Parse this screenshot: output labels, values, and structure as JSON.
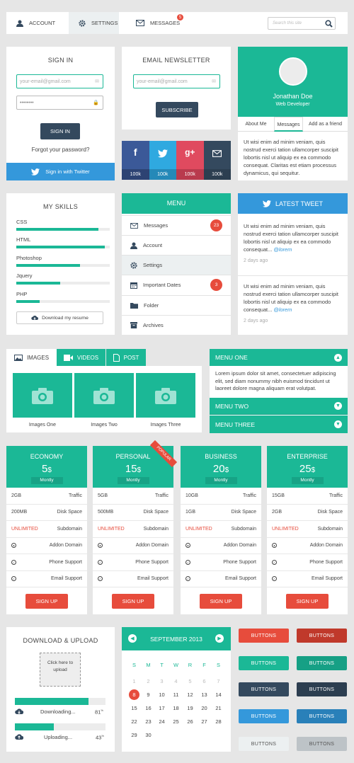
{
  "tabs": [
    {
      "label": "ACCOUNT",
      "icon": "user-icon"
    },
    {
      "label": "SETTINGS",
      "icon": "gear-icon"
    },
    {
      "label": "MESSAGES",
      "icon": "envelope-icon",
      "badge": "5"
    }
  ],
  "search": {
    "placeholder": "Search this site"
  },
  "signin": {
    "title": "SIGN IN",
    "email_placeholder": "your-email@gmail.com",
    "password": "••••••••",
    "button": "SIGN IN",
    "forgot": "Forgot your password?",
    "twitter": "Sign in with Twitter"
  },
  "newsletter": {
    "title": "EMAIL NEWSLETTER",
    "email_placeholder": "your-email@gmail.com",
    "button": "SUBSCRIBE"
  },
  "social": [
    {
      "icon": "f",
      "count": "100k",
      "color": "#3b5998"
    },
    {
      "icon": "bird",
      "count": "100k",
      "color": "#2fa9e0"
    },
    {
      "icon": "g+",
      "count": "100k",
      "color": "#e04a5f"
    },
    {
      "icon": "mail",
      "count": "100k",
      "color": "#34495e"
    }
  ],
  "profile": {
    "name": "Jonathan Doe",
    "role": "Web Developer",
    "tabs": [
      "About Me",
      "Messages",
      "Add as a friend"
    ],
    "text": "Ut wisi enim ad minim veniam, quis nostrud exerci tation ullamcorper suscipit lobortis nisl ut aliquip ex ea commodo consequat. Claritas est etiam processus dynamicus, qui sequitur."
  },
  "skills": {
    "title": "MY SKILLS",
    "items": [
      {
        "label": "CSS",
        "value": 0.88
      },
      {
        "label": "HTML",
        "value": 0.95
      },
      {
        "label": "Photoshop",
        "value": 0.68
      },
      {
        "label": "Jquery",
        "value": 0.47
      },
      {
        "label": "PHP",
        "value": 0.25
      }
    ],
    "download": "Download my resume"
  },
  "menu": {
    "title": "MENU",
    "items": [
      {
        "label": "Messages",
        "icon": "envelope-icon",
        "badge": "23"
      },
      {
        "label": "Account",
        "icon": "user-icon"
      },
      {
        "label": "Settings",
        "icon": "gear-icon"
      },
      {
        "label": "Important Dates",
        "icon": "calendar-icon",
        "badge": "3"
      },
      {
        "label": "Folder",
        "icon": "folder-icon"
      },
      {
        "label": "Archives",
        "icon": "archive-icon"
      }
    ]
  },
  "tweet": {
    "title": "LATEST TWEET",
    "items": [
      {
        "text": "Ut wisi enim ad minim veniam, quis nostrud exerci tation ullamcorper suscipit lobortis nisl ut aliquip ex ea commodo consequat...",
        "handle": "@lorem",
        "time": "2 days ago"
      },
      {
        "text": "Ut wisi enim ad minim veniam, quis nostrud exerci tation ullamcorper suscipit lobortis nisl ut aliquip ex ea commodo consequat...",
        "handle": "@lorem",
        "time": "2 days ago"
      }
    ]
  },
  "media": {
    "tabs": [
      "IMAGES",
      "VIDEOS",
      "POST"
    ],
    "images": [
      "Images One",
      "Images Two",
      "Images Three"
    ]
  },
  "accordion": {
    "items": [
      "MENU ONE",
      "MENU TWO",
      "MENU THREE"
    ],
    "text": "Lorem ipsum dolor sit amet, consectetuer adipiscing elit, sed diam nonummy nibh euismod tincidunt ut laoreet dolore magna aliquam erat volutpat."
  },
  "pricing": [
    {
      "name": "ECONOMY",
      "price": "5",
      "currency": "$",
      "period": "Montly",
      "rows": [
        [
          "2GB",
          "Traffic"
        ],
        [
          "200MB",
          "Disk Space"
        ],
        [
          "UNLIMITED",
          "Subdomain"
        ]
      ],
      "features": [
        "Addon Domain",
        "Phone Support",
        "Email Support"
      ],
      "button": "SIGN UP"
    },
    {
      "name": "PERSONAL",
      "price": "15",
      "currency": "$",
      "period": "Montly",
      "ribbon": "POPULAR",
      "rows": [
        [
          "5GB",
          "Traffic"
        ],
        [
          "500MB",
          "Disk Space"
        ],
        [
          "UNLIMITED",
          "Subdomain"
        ]
      ],
      "features": [
        "Addon Domain",
        "Phone Support",
        "Email Support"
      ],
      "button": "SIGN UP"
    },
    {
      "name": "BUSINESS",
      "price": "20",
      "currency": "$",
      "period": "Montly",
      "rows": [
        [
          "10GB",
          "Traffic"
        ],
        [
          "1GB",
          "Disk Space"
        ],
        [
          "UNLIMITED",
          "Subdomain"
        ]
      ],
      "features": [
        "Addon Domain",
        "Phone Support",
        "Email Support"
      ],
      "button": "SIGN UP"
    },
    {
      "name": "ENTERPRISE",
      "price": "25",
      "currency": "$",
      "period": "Montly",
      "rows": [
        [
          "15GB",
          "Traffic"
        ],
        [
          "2GB",
          "Disk Space"
        ],
        [
          "UNLIMITED",
          "Subdomain"
        ]
      ],
      "features": [
        "Addon Domain",
        "Phone Support",
        "Email Support"
      ],
      "button": "SIGN UP"
    }
  ],
  "upload": {
    "title": "DOWNLOAD & UPLOAD",
    "drop": "Click here to upload",
    "items": [
      {
        "label": "Downloading...",
        "percent": "81",
        "value": 0.81
      },
      {
        "label": "Uploading...",
        "percent": "43",
        "value": 0.43
      }
    ]
  },
  "calendar": {
    "title": "SEPTEMBER 2013",
    "weekdays": [
      "S",
      "M",
      "T",
      "W",
      "R",
      "F",
      "S"
    ],
    "prev": [
      "1",
      "2",
      "3",
      "4",
      "5",
      "6",
      "7"
    ],
    "today": "8",
    "days": [
      "9",
      "10",
      "11",
      "12",
      "13",
      "14",
      "15",
      "16",
      "17",
      "18",
      "19",
      "20",
      "21",
      "22",
      "23",
      "24",
      "25",
      "26",
      "27",
      "28",
      "29",
      "30"
    ]
  },
  "buttons": {
    "label": "BUTTONS",
    "colors": [
      [
        "#e74c3c",
        "#c0392b"
      ],
      [
        "#1bb896",
        "#16a085"
      ],
      [
        "#34495e",
        "#2c3e50"
      ],
      [
        "#3498db",
        "#2980b9"
      ],
      [
        "#ecf0f1",
        "#bdc3c7"
      ]
    ]
  }
}
